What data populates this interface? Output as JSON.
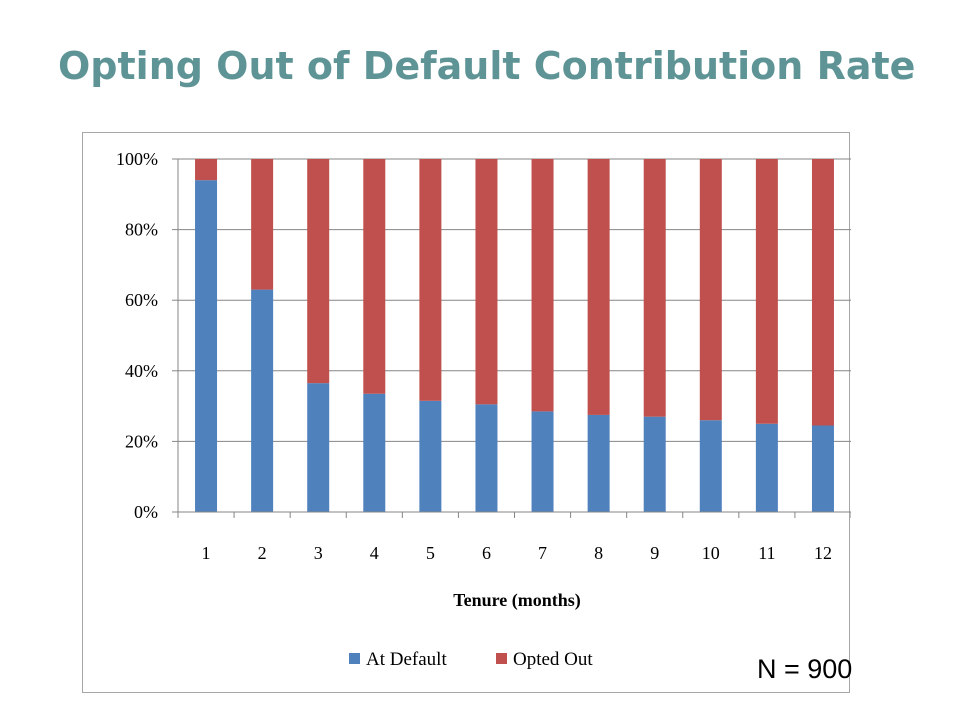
{
  "slide": {
    "title": "Opting Out of Default Contribution Rate",
    "note": "N = 900"
  },
  "chart_data": {
    "type": "bar",
    "stacked": true,
    "categories": [
      "1",
      "2",
      "3",
      "4",
      "5",
      "6",
      "7",
      "8",
      "9",
      "10",
      "11",
      "12"
    ],
    "series": [
      {
        "name": "At Default",
        "color": "#4f81bd",
        "values": [
          94,
          63,
          36.5,
          33.5,
          31.5,
          30.5,
          28.5,
          27.5,
          27,
          26,
          25,
          24.5
        ]
      },
      {
        "name": "Opted Out",
        "color": "#c0504d",
        "values": [
          6,
          37,
          63.5,
          66.5,
          68.5,
          69.5,
          71.5,
          72.5,
          73,
          74,
          75,
          75.5
        ]
      }
    ],
    "xlabel": "Tenure (months)",
    "ylabel": "",
    "ylim": [
      0,
      100
    ],
    "yticks": [
      "0%",
      "20%",
      "40%",
      "60%",
      "80%",
      "100%"
    ],
    "grid": true,
    "legend": "bottom"
  }
}
